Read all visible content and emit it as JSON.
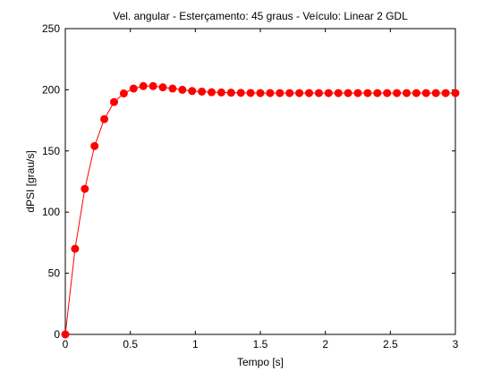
{
  "chart_data": {
    "type": "line",
    "title": "Vel. angular - Esterçamento: 45 graus - Veículo: Linear 2 GDL",
    "xlabel": "Tempo [s]",
    "ylabel": "dPSI [grau/s]",
    "xlim": [
      0,
      3
    ],
    "ylim": [
      0,
      250
    ],
    "xticks": [
      "0",
      "0.5",
      "1",
      "1.5",
      "2",
      "2.5",
      "3"
    ],
    "yticks": [
      "0",
      "50",
      "100",
      "150",
      "200",
      "250"
    ],
    "grid": false,
    "legend": "none",
    "series": [
      {
        "color": "#ff0000",
        "marker": "circle",
        "x": [
          0,
          0.075,
          0.15,
          0.225,
          0.3,
          0.375,
          0.45,
          0.525,
          0.6,
          0.675,
          0.75,
          0.825,
          0.9,
          0.975,
          1.05,
          1.125,
          1.2,
          1.275,
          1.35,
          1.425,
          1.5,
          1.575,
          1.65,
          1.725,
          1.8,
          1.875,
          1.95,
          2.025,
          2.1,
          2.175,
          2.25,
          2.325,
          2.4,
          2.475,
          2.55,
          2.625,
          2.7,
          2.775,
          2.85,
          2.925,
          3.0
        ],
        "y": [
          0,
          70,
          119,
          154,
          176,
          190,
          197,
          201,
          203,
          203,
          202,
          201,
          200,
          199,
          198.5,
          198,
          197.8,
          197.6,
          197.5,
          197.4,
          197.3,
          197.3,
          197.3,
          197.3,
          197.3,
          197.3,
          197.3,
          197.3,
          197.3,
          197.3,
          197.3,
          197.3,
          197.3,
          197.3,
          197.3,
          197.3,
          197.3,
          197.3,
          197.3,
          197.3,
          197.3
        ]
      }
    ]
  }
}
